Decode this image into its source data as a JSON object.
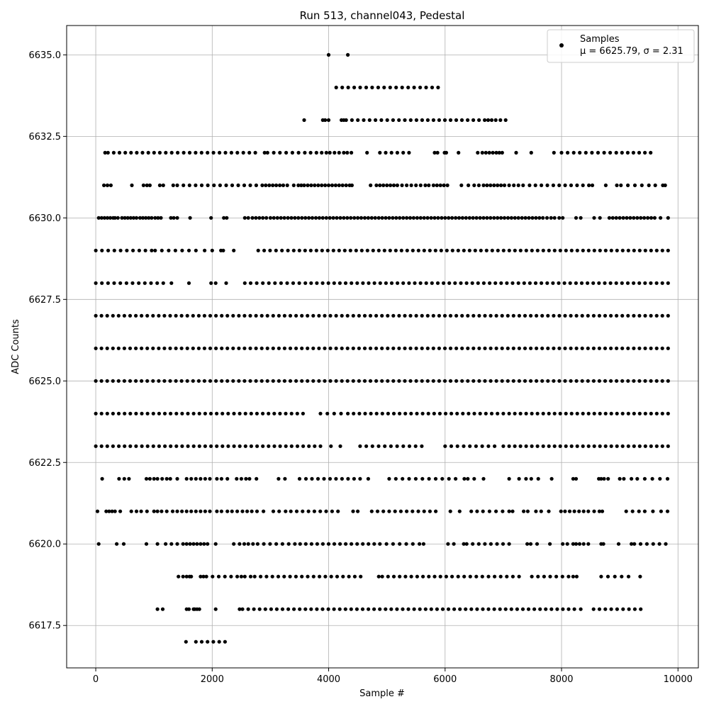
{
  "chart_data": {
    "type": "scatter",
    "title": "Run 513, channel043, Pedestal",
    "xlabel": "Sample #",
    "ylabel": "ADC Counts",
    "xlim": [
      -500,
      10350
    ],
    "ylim": [
      6616.2,
      6635.9
    ],
    "x_ticks": [
      0,
      2000,
      4000,
      6000,
      8000,
      10000
    ],
    "x_tick_labels": [
      "0",
      "2000",
      "4000",
      "6000",
      "8000",
      "10000"
    ],
    "y_ticks": [
      6617.5,
      6620.0,
      6622.5,
      6625.0,
      6627.5,
      6630.0,
      6632.5,
      6635.0
    ],
    "y_tick_labels": [
      "6617.5",
      "6620.0",
      "6622.5",
      "6625.0",
      "6627.5",
      "6630.0",
      "6632.5",
      "6635.0"
    ],
    "grid": true,
    "legend": {
      "placement": "top-right",
      "label": "Samples",
      "stats": "μ = 6625.79, σ = 2.31"
    },
    "marker_color": "#000000",
    "series": [
      {
        "name": "Samples",
        "x_range": [
          0,
          9830
        ],
        "num_samples": 9830,
        "mean": 6625.79,
        "std": 2.31,
        "levels": [
          {
            "y": 6617,
            "x": [
              1550,
              1720,
              2220
            ]
          },
          {
            "y": 6618,
            "x": [
              1060,
              1150,
              1560,
              1600,
              1680,
              1700,
              1740,
              1780,
              2060,
              2470,
              2520,
              8220,
              8330,
              8550,
              9360
            ]
          },
          {
            "y": 6619,
            "x": [
              1420,
              1500,
              1560,
              1610,
              1640,
              1800,
              1850,
              1900,
              2430,
              2500,
              2560,
              2660,
              2730,
              4550,
              4860,
              4920,
              6120,
              6640,
              7270,
              7490,
              8120,
              8200,
              8260,
              8680,
              9150,
              9350
            ]
          },
          {
            "y": 6620,
            "x": [
              50,
              360,
              480,
              870,
              1060,
              1200,
              1300,
              1400,
              1500,
              1560,
              1620,
              1680,
              1740,
              1800,
              1860,
              1920,
              2060,
              2370,
              2470,
              2550,
              2620,
              2700,
              2780,
              3420,
              3510,
              4880,
              5560,
              5630,
              6050,
              6150,
              6320,
              6370,
              7100,
              7410,
              7470,
              7580,
              7800,
              8020,
              8100,
              8200,
              8250,
              8310,
              8380,
              8460,
              8680,
              8720,
              8980,
              9200,
              9250,
              9790
            ]
          },
          {
            "y": 6621,
            "x": [
              30,
              180,
              230,
              280,
              330,
              420,
              610,
              700,
              780,
              880,
              1000,
              1060,
              1130,
              1220,
              1320,
              1400,
              1480,
              1560,
              1640,
              1720,
              1800,
              1880,
              1960,
              2080,
              2160,
              2260,
              2340,
              2430,
              2520,
              2600,
              2680,
              2770,
              2880,
              3050,
              3150,
              3260,
              3350,
              4160,
              4420,
              4500,
              4740,
              5840,
              6090,
              6250,
              6450,
              6550,
              6650,
              7100,
              7160,
              7350,
              7420,
              7560,
              7650,
              7780,
              7990,
              8060,
              8140,
              8220,
              8300,
              8380,
              8460,
              8560,
              8650,
              8700,
              9110,
              9220,
              9330,
              9430,
              9570,
              9710,
              9820
            ]
          },
          {
            "y": 6622,
            "x": [
              110,
              400,
              490,
              570,
              870,
              930,
              1000,
              1060,
              1140,
              1220,
              1280,
              1400,
              1560,
              1640,
              1720,
              1800,
              1880,
              1960,
              2080,
              2160,
              2260,
              2420,
              2500,
              2580,
              2640,
              2760,
              3140,
              3250,
              3500,
              3610,
              4540,
              4680,
              5040,
              5610,
              6180,
              6330,
              6390,
              6500,
              6660,
              7100,
              7270,
              7390,
              7480,
              7600,
              7830,
              8200,
              8250,
              8640,
              8680,
              8730,
              8800,
              9000,
              9070,
              9200,
              9300,
              9430,
              9560,
              9690,
              9820
            ]
          },
          {
            "y": 6623,
            "x": [
              0,
              3760,
              3860,
              4040,
              4200,
              4540,
              5600,
              6000,
              6850,
              7000,
              7100,
              9830
            ]
          },
          {
            "y": 6624,
            "x": [
              0,
              3560,
              3860,
              4330,
              6700,
              6800,
              6900,
              7000,
              7100,
              9830
            ]
          },
          {
            "y": 6625,
            "x": [
              0,
              9830
            ]
          },
          {
            "y": 6626,
            "x": [
              0,
              9830
            ]
          },
          {
            "y": 6627,
            "x": [
              0,
              9830
            ]
          },
          {
            "y": 6628,
            "x": [
              0,
              1160,
              1300,
              1600,
              1980,
              2060,
              2240,
              2560,
              2660,
              3600,
              9830
            ]
          },
          {
            "y": 6629,
            "x": [
              0,
              960,
              1020,
              1600,
              1720,
              1870,
              2000,
              2150,
              2190,
              2370,
              2790,
              3300,
              3400,
              9830
            ]
          },
          {
            "y": 6630,
            "x": [
              50,
              100,
              150,
              200,
              250,
              300,
              330,
              380,
              450,
              500,
              550,
              600,
              650,
              700,
              760,
              810,
              860,
              910,
              960,
              1020,
              1070,
              1120,
              1290,
              1340,
              1400,
              1620,
              1980,
              2200,
              2250,
              2560,
              2620,
              2690,
              2750,
              2810,
              2870,
              2930,
              3000,
              3060,
              3120,
              3180,
              3240,
              3300,
              3360,
              3420,
              3480,
              3540,
              3600,
              3660,
              3720,
              3780,
              3840,
              3900,
              3960,
              4020,
              4080,
              4140,
              4200,
              4260,
              4320,
              4380,
              4440,
              4500,
              4560,
              4620,
              4680,
              4740,
              4800,
              4860,
              4920,
              4980,
              5040,
              5100,
              5160,
              5220,
              5280,
              5340,
              5400,
              5460,
              5520,
              5580,
              5640,
              5700,
              5760,
              5820,
              5880,
              5940,
              6000,
              6060,
              6120,
              6180,
              6240,
              6300,
              6360,
              6420,
              6480,
              6540,
              6600,
              6660,
              6720,
              6780,
              6840,
              6900,
              6960,
              7020,
              7080,
              7140,
              7200,
              7260,
              7320,
              7380,
              7440,
              7500,
              7560,
              7620,
              7680,
              7750,
              7820,
              7880,
              7960,
              8020,
              8250,
              8330,
              8560,
              8660,
              8820,
              8880,
              8940,
              9000,
              9060,
              9120,
              9180,
              9240,
              9300,
              9360,
              9420,
              9480,
              9540,
              9600,
              9700,
              9830
            ]
          },
          {
            "y": 6631,
            "x": [
              140,
              200,
              260,
              620,
              820,
              880,
              930,
              1100,
              1160,
              1330,
              1400,
              2240,
              2860,
              2920,
              2980,
              3040,
              3100,
              3160,
              3220,
              3290,
              3400,
              3480,
              3530,
              3580,
              3640,
              3700,
              3760,
              3820,
              3880,
              3940,
              4000,
              4060,
              4120,
              4180,
              4240,
              4300,
              4360,
              4400,
              4720,
              4820,
              4880,
              4940,
              5000,
              5060,
              5120,
              5180,
              5260,
              5340,
              5420,
              5500,
              5580,
              5660,
              5720,
              5800,
              5860,
              5920,
              5980,
              6040,
              6280,
              6400,
              6500,
              6580,
              6660,
              6720,
              6780,
              6840,
              6900,
              6960,
              7020,
              7100,
              7180,
              7260,
              7340,
              7450,
              8470,
              8530,
              8760,
              8950,
              9020,
              9500,
              9610,
              9740,
              9780
            ]
          },
          {
            "y": 6632,
            "x": [
              160,
              210,
              1100,
              2740,
              2900,
              2950,
              3590,
              3690,
              3790,
              3880,
              3960,
              4020,
              4100,
              4180,
              4260,
              4320,
              4390,
              4660,
              4880,
              5380,
              5820,
              5870,
              5990,
              6020,
              6230,
              6560,
              6640,
              6700,
              6760,
              6820,
              6880,
              6930,
              6980,
              7220,
              7480,
              7870,
              8000,
              8940,
              9530
            ]
          },
          {
            "y": 6633,
            "x": [
              3580,
              3900,
              3940,
              4000,
              4220,
              4260,
              4300,
              4400,
              5410,
              6680,
              6740,
              6800,
              6870,
              6950,
              7040
            ]
          },
          {
            "y": 6634,
            "x": [
              4130,
              5880
            ]
          },
          {
            "y": 6635,
            "x": [
              4000,
              4330
            ]
          }
        ]
      }
    ]
  }
}
